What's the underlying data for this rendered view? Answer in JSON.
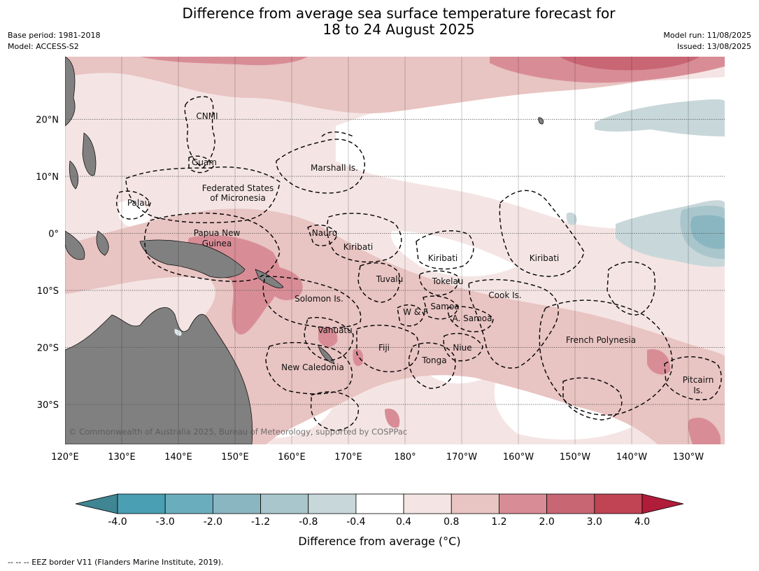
{
  "title_line1": "Difference from average sea surface temperature forecast for",
  "title_line2": "18 to 24 August 2025",
  "meta_left": {
    "base_period": "Base period: 1981-2018",
    "model": "Model: ACCESS-S2"
  },
  "meta_right": {
    "model_run": "Model run: 11/08/2025",
    "issued": "Issued: 13/08/2025"
  },
  "copyright": "© Commonwealth of Australia 2025, Bureau of Meteorology, supported by COSPPac",
  "lon_ticks": [
    "120°E",
    "130°E",
    "140°E",
    "150°E",
    "160°E",
    "170°E",
    "180°",
    "170°W",
    "160°W",
    "150°W",
    "140°W",
    "130°W"
  ],
  "lat_ticks": [
    "20°N",
    "10°N",
    "0°",
    "10°S",
    "20°S",
    "30°S"
  ],
  "region_labels": {
    "cnmi": "CNMI",
    "guam": "Guam",
    "marshall": "Marshall Is.",
    "fsm1": "Federated States",
    "fsm2": "of Micronesia",
    "palau": "Palau",
    "png1": "Papua New",
    "png2": "Guinea",
    "nauru": "Nauru",
    "kiribati_w": "Kiribati",
    "kiribati_c": "Kiribati",
    "kiribati_e": "Kiribati",
    "tuvalu": "Tuvalu",
    "tokelau": "Tokelau",
    "solomon": "Solomon Is.",
    "samoa": "Samoa",
    "wf": "W & F",
    "asamoa": "A. Samoa",
    "cook": "Cook Is.",
    "vanuatu": "Vanuatu",
    "fiji": "Fiji",
    "niue": "Niue",
    "tonga": "Tonga",
    "newcal": "New Caledonia",
    "frpoly": "French Polynesia",
    "pitcairn1": "Pitcairn",
    "pitcairn2": "Is."
  },
  "colorbar": {
    "tick_labels": [
      "-4.0",
      "-3.0",
      "-2.0",
      "-1.2",
      "-0.8",
      "-0.4",
      "0.4",
      "0.8",
      "1.2",
      "2.0",
      "3.0",
      "4.0"
    ],
    "colors": [
      "#3f8592",
      "#4a9fb3",
      "#6aaebd",
      "#8ab6c1",
      "#a9c6cc",
      "#c8d7da",
      "#ffffff",
      "#f4e5e4",
      "#e8c4c2",
      "#d88d96",
      "#c96674",
      "#c04453",
      "#b01c39"
    ],
    "label": "Difference from average ($^\\circ$C)",
    "label_display": "Difference from average (°C)"
  },
  "footer": "--  --  -- EEZ border V11 (Flanders Marine Institute, 2019)."
}
